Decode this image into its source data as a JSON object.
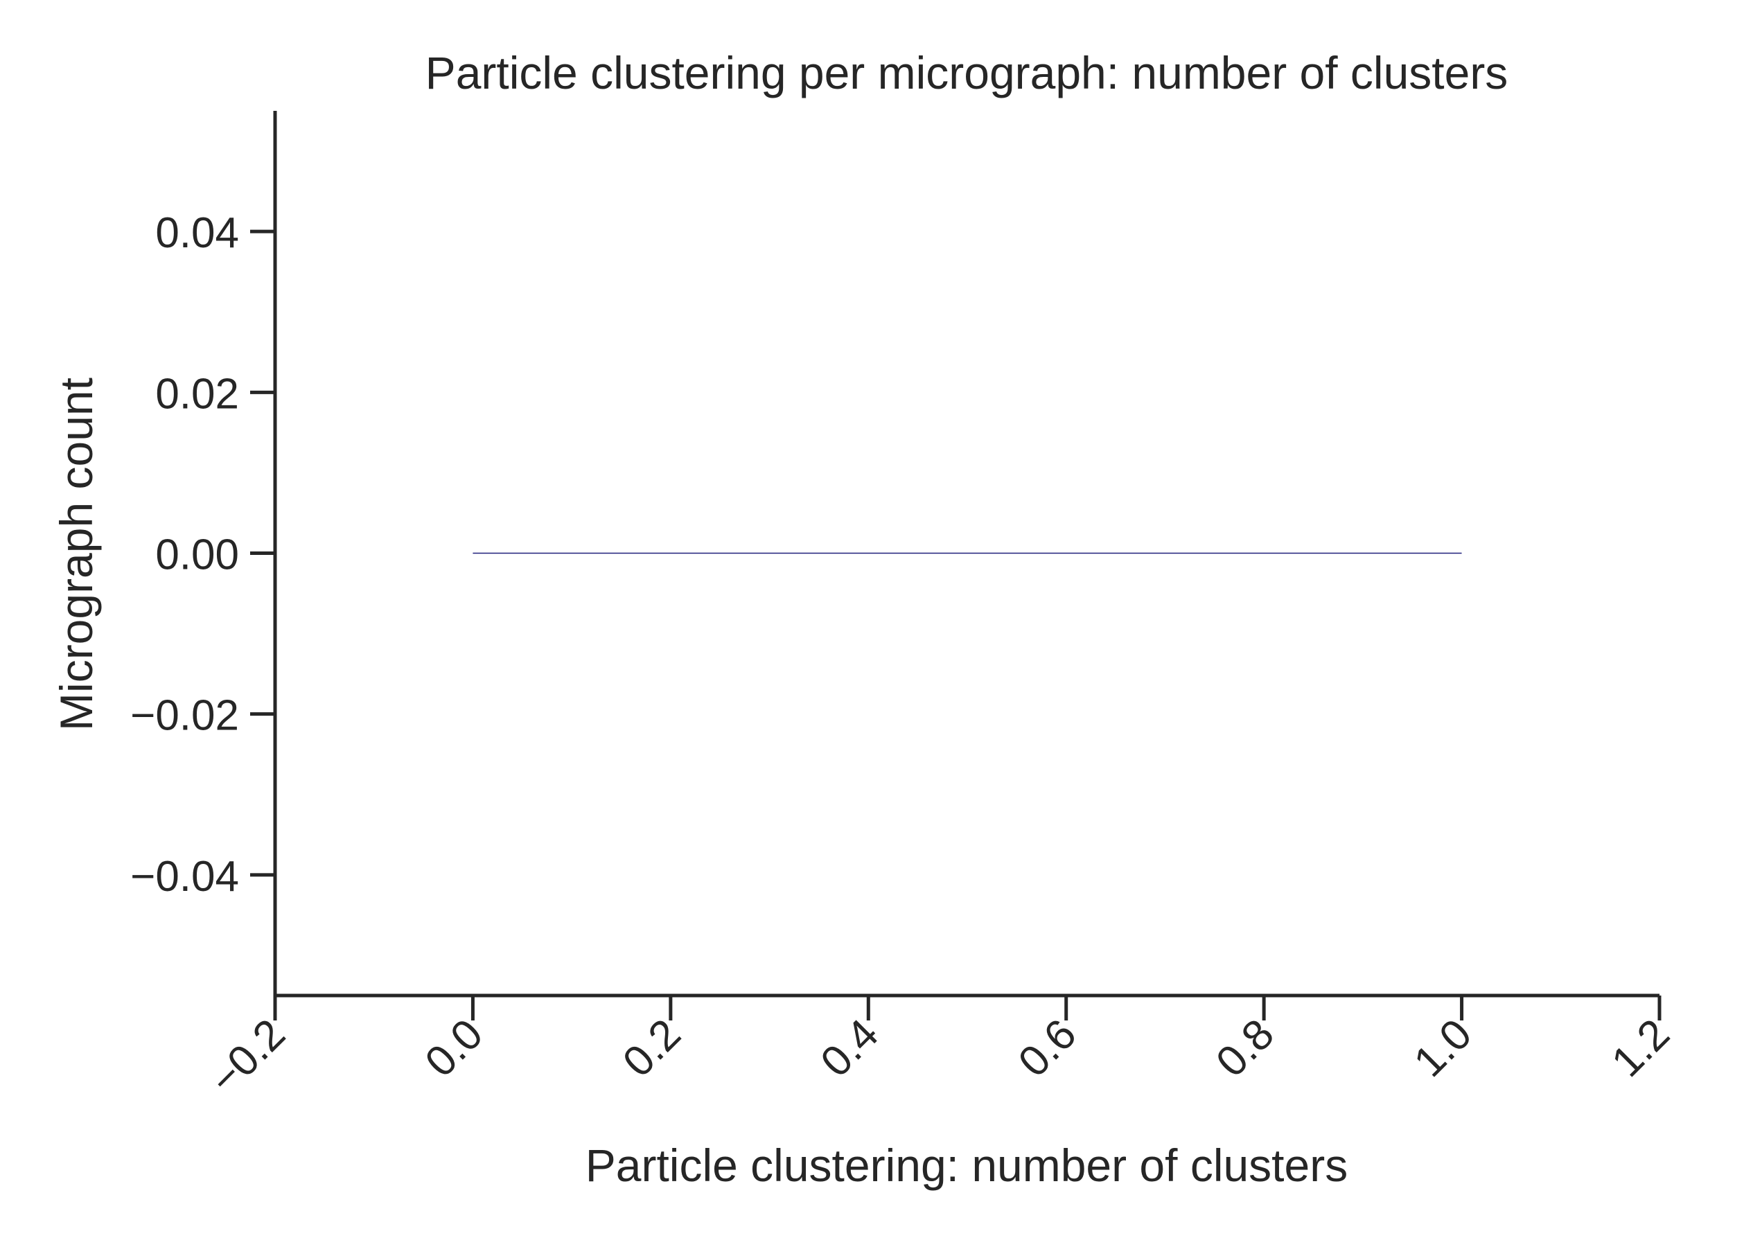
{
  "chart_data": {
    "type": "bar",
    "title": "Particle clustering per micrograph: number of clusters",
    "xlabel": "Particle clustering: number of clusters",
    "ylabel": "Micrograph count",
    "xlim": [
      -0.2,
      1.2
    ],
    "ylim": [
      -0.055,
      0.055
    ],
    "xticks": [
      -0.2,
      0.0,
      0.2,
      0.4,
      0.6,
      0.8,
      1.0,
      1.2
    ],
    "xtick_labels": [
      "−0.2",
      "0.0",
      "0.2",
      "0.4",
      "0.6",
      "0.8",
      "1.0",
      "1.2"
    ],
    "yticks": [
      0.04,
      0.02,
      0.0,
      -0.02,
      -0.04
    ],
    "ytick_labels": [
      "0.04",
      "0.02",
      "0.00",
      "−0.02",
      "−0.04"
    ],
    "bins": [
      {
        "x0": 0.0,
        "x1": 1.0,
        "value": 0
      }
    ],
    "grid": false,
    "bar_color": "#1f1f7a",
    "axis_color": "#262626"
  }
}
